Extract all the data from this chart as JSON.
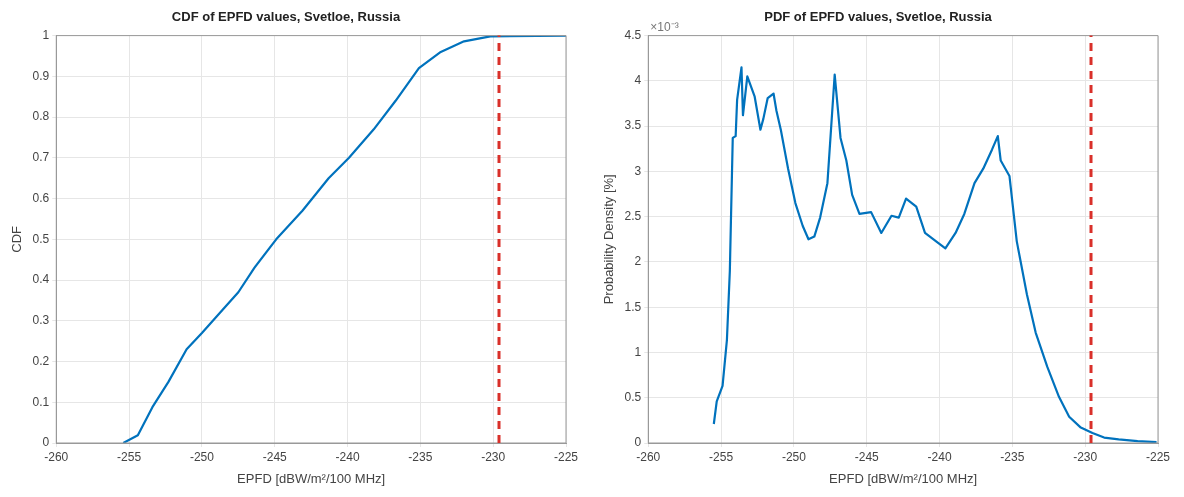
{
  "chart_data": [
    {
      "type": "line",
      "title": "CDF of EPFD values, Svetloe, Russia",
      "xlabel": "EPFD [dBW/m²/100 MHz]",
      "ylabel": "CDF",
      "series": [
        {
          "color": "#0072bd",
          "x": [
            -255.4,
            -254.4,
            -253.4,
            -252.3,
            -251.05,
            -250,
            -248.5,
            -247.5,
            -246.4,
            -244.9,
            -243.1,
            -241.3,
            -239.9,
            -238.2,
            -236.7,
            -235.1,
            -233.6,
            -232,
            -230.2,
            -225
          ],
          "values": [
            0,
            0.019,
            0.088,
            0.15,
            0.23,
            0.27,
            0.33,
            0.37,
            0.43,
            0.5,
            0.57,
            0.65,
            0.7,
            0.77,
            0.84,
            0.92,
            0.96,
            0.986,
            0.998,
            1
          ]
        }
      ],
      "xlim": [
        -260,
        -225
      ],
      "xticks": [
        -260,
        -255,
        -250,
        -245,
        -240,
        -235,
        -230,
        -225
      ],
      "ylim": [
        0,
        1
      ],
      "yticks": [
        0,
        0.1,
        0.2,
        0.3,
        0.4,
        0.5,
        0.6,
        0.7,
        0.8,
        0.9,
        1
      ],
      "ref_lines": [
        {
          "axis": "x",
          "value": -229.6,
          "color": "#d9302a",
          "line_style": "dashed"
        }
      ],
      "grid": true,
      "legend": false,
      "marker": "none",
      "line_style": "solid"
    },
    {
      "type": "line",
      "title": "PDF of EPFD values, Svetloe, Russia",
      "xlabel": "EPFD [dBW/m²/100 MHz]",
      "ylabel": "Probability Density [%]",
      "annotations": [
        "×10⁻³"
      ],
      "series": [
        {
          "color": "#0072bd",
          "x": [
            -255.5,
            -255.3,
            -254.9,
            -254.6,
            -254.4,
            -254.2,
            -254.0,
            -253.9,
            -253.6,
            -253.5,
            -253.2,
            -252.7,
            -252.3,
            -252.1,
            -251.8,
            -251.4,
            -251.2,
            -250.9,
            -250.4,
            -249.9,
            -249.4,
            -249.0,
            -248.6,
            -248.2,
            -247.7,
            -247.2,
            -246.8,
            -246.4,
            -246.0,
            -245.5,
            -244.7,
            -244.0,
            -243.3,
            -242.8,
            -242.3,
            -241.6,
            -241.0,
            -240.1,
            -239.6,
            -238.9,
            -238.3,
            -237.6,
            -237.0,
            -236.4,
            -236.0,
            -235.8,
            -235.2,
            -234.7,
            -234.0,
            -233.4,
            -232.6,
            -231.8,
            -231.1,
            -230.3,
            -229.5,
            -228.7,
            -227.7,
            -226.4,
            -225.1
          ],
          "values": [
            0.21,
            0.46,
            0.63,
            1.14,
            1.9,
            3.37,
            3.39,
            3.79,
            4.15,
            3.62,
            4.05,
            3.83,
            3.46,
            3.58,
            3.81,
            3.86,
            3.67,
            3.46,
            3.03,
            2.65,
            2.4,
            2.25,
            2.28,
            2.49,
            2.87,
            4.07,
            3.37,
            3.12,
            2.74,
            2.53,
            2.55,
            2.32,
            2.51,
            2.49,
            2.7,
            2.61,
            2.32,
            2.21,
            2.15,
            2.32,
            2.53,
            2.87,
            3.03,
            3.24,
            3.39,
            3.12,
            2.95,
            2.23,
            1.64,
            1.22,
            0.84,
            0.51,
            0.29,
            0.17,
            0.11,
            0.06,
            0.04,
            0.02,
            0.01
          ]
        }
      ],
      "xlim": [
        -260,
        -225
      ],
      "xticks": [
        -260,
        -255,
        -250,
        -245,
        -240,
        -235,
        -230,
        -225
      ],
      "ylim": [
        0,
        4.5
      ],
      "yticks": [
        0,
        0.5,
        1,
        1.5,
        2,
        2.5,
        3,
        3.5,
        4,
        4.5
      ],
      "ref_lines": [
        {
          "axis": "x",
          "value": -229.6,
          "color": "#d9302a",
          "line_style": "dashed"
        }
      ],
      "grid": true,
      "legend": false,
      "marker": "none",
      "line_style": "solid"
    }
  ]
}
